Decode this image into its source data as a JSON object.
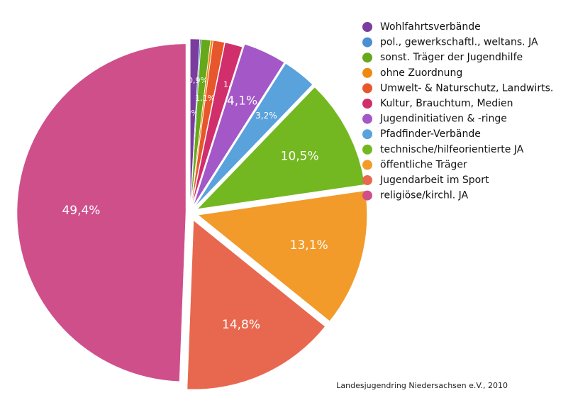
{
  "chart_data": {
    "type": "pie",
    "categories": [
      "Wohlfahrtsverbände",
      "pol., gewerkschaftl., weltans. JA",
      "sonst. Träger der Jugendhilfe",
      "ohne Zuordnung",
      "Umwelt- & Naturschutz, Landwirts.",
      "Kultur, Brauchtum, Medien",
      "Jugendinitiativen & -ringe",
      "Pfadfinder-Verbände",
      "technische/hilfeorientierte JA",
      "öffentliche Träger",
      "Jugendarbeit im Sport",
      "religiöse/kirchl. JA"
    ],
    "values": [
      0.9,
      0.1,
      0.9,
      0.2,
      1.1,
      1.7,
      4.1,
      3.2,
      10.5,
      13.1,
      14.8,
      49.4
    ],
    "value_labels": [
      "0,9%",
      "0,1%",
      "0,9%",
      "0,2%",
      "1,1%",
      "1,7%",
      "4,1%",
      "3,2%",
      "10,5%",
      "13,1%",
      "14,8%",
      "49,4%"
    ],
    "colors": [
      "#7a3c9e",
      "#4a8fd2",
      "#66a81c",
      "#ee8a12",
      "#e8562c",
      "#d02f6c",
      "#a457c6",
      "#5aa2dc",
      "#73b820",
      "#f29b2a",
      "#e8684f",
      "#cf4f8b"
    ],
    "legend": "right",
    "source": "Landesjugendring Niedersachsen e.V., 2010"
  }
}
